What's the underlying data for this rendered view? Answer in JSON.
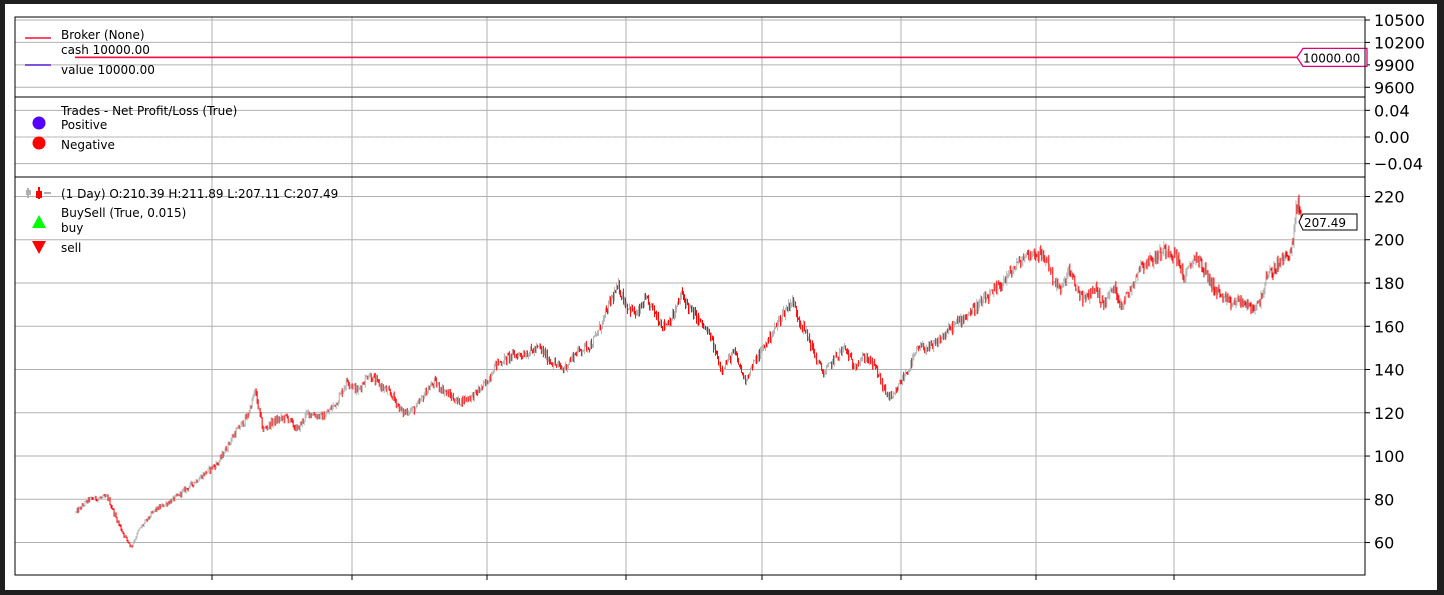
{
  "chart_data": [
    {
      "type": "line",
      "title": "",
      "ylim": [
        9470,
        10540
      ],
      "yticks": [
        10500,
        10200,
        9900,
        9600
      ],
      "grid": true,
      "legend_position": "top-left",
      "legend": [
        {
          "label": "Broker (None)",
          "color": "#ff1030",
          "marker": ""
        },
        {
          "label": "cash 10000.00",
          "color": "#ff1030",
          "marker": "line"
        },
        {
          "label": "value 10000.00",
          "color": "#5b1fd6",
          "marker": "line"
        }
      ],
      "series": [
        {
          "name": "cash 10000.00",
          "color": "#ff1030",
          "value": 10000.0
        },
        {
          "name": "value 10000.00",
          "color": "#5b1fd6",
          "value": 10000.0
        }
      ],
      "last_value_label": "10000.00",
      "last_value_color": "#e0007a"
    },
    {
      "type": "scatter",
      "ylim": [
        -0.06,
        0.06
      ],
      "yticks": [
        0.04,
        0.0,
        -0.04
      ],
      "ytick_labels": [
        "0.04",
        "0.00",
        "−0.04"
      ],
      "zero_line": 0.0,
      "grid": true,
      "legend_position": "top-left",
      "legend": [
        {
          "label": "Trades - Net Profit/Loss (True)",
          "color": "",
          "marker": ""
        },
        {
          "label": "Positive",
          "color": "#5500ff",
          "marker": "circle"
        },
        {
          "label": "Negative",
          "color": "#ff0000",
          "marker": "circle"
        }
      ],
      "points": []
    },
    {
      "type": "candlestick",
      "ylim": [
        45,
        229
      ],
      "yticks": [
        220,
        200,
        180,
        160,
        140,
        120,
        100,
        80,
        60
      ],
      "grid": true,
      "legend_position": "top-left",
      "legend": [
        {
          "label": " (1 Day) O:210.39 H:211.89 L:207.11 C:207.49",
          "marker": "candle"
        },
        {
          "label": "BuySell (True, 0.015)",
          "color": "",
          "marker": ""
        },
        {
          "label": "buy",
          "color": "#00ff00",
          "marker": "triangle-up"
        },
        {
          "label": "sell",
          "color": "#ff0000",
          "marker": "triangle-down"
        }
      ],
      "up_color": "#b0b0b0",
      "down_color": "#ff0000",
      "x_range": [
        0,
        1000
      ],
      "last_value_label": "207.49",
      "anchors": [
        [
          0,
          74
        ],
        [
          10,
          80
        ],
        [
          24,
          81
        ],
        [
          30,
          72
        ],
        [
          36,
          64
        ],
        [
          42,
          58
        ],
        [
          48,
          66
        ],
        [
          60,
          75
        ],
        [
          74,
          80
        ],
        [
          90,
          88
        ],
        [
          108,
          97
        ],
        [
          120,
          110
        ],
        [
          130,
          118
        ],
        [
          136,
          130
        ],
        [
          142,
          112
        ],
        [
          150,
          116
        ],
        [
          160,
          118
        ],
        [
          168,
          112
        ],
        [
          176,
          120
        ],
        [
          188,
          118
        ],
        [
          198,
          125
        ],
        [
          206,
          135
        ],
        [
          214,
          130
        ],
        [
          222,
          138
        ],
        [
          232,
          132
        ],
        [
          240,
          128
        ],
        [
          248,
          120
        ],
        [
          258,
          122
        ],
        [
          266,
          130
        ],
        [
          272,
          134
        ],
        [
          280,
          130
        ],
        [
          290,
          125
        ],
        [
          302,
          128
        ],
        [
          312,
          134
        ],
        [
          318,
          142
        ],
        [
          330,
          146
        ],
        [
          344,
          148
        ],
        [
          352,
          150
        ],
        [
          360,
          144
        ],
        [
          370,
          140
        ],
        [
          380,
          148
        ],
        [
          392,
          152
        ],
        [
          400,
          162
        ],
        [
          406,
          172
        ],
        [
          412,
          178
        ],
        [
          418,
          170
        ],
        [
          426,
          165
        ],
        [
          432,
          172
        ],
        [
          438,
          168
        ],
        [
          446,
          160
        ],
        [
          454,
          165
        ],
        [
          460,
          175
        ],
        [
          466,
          168
        ],
        [
          474,
          162
        ],
        [
          482,
          155
        ],
        [
          490,
          140
        ],
        [
          500,
          148
        ],
        [
          508,
          135
        ],
        [
          514,
          142
        ],
        [
          522,
          150
        ],
        [
          530,
          158
        ],
        [
          536,
          165
        ],
        [
          544,
          172
        ],
        [
          550,
          162
        ],
        [
          556,
          155
        ],
        [
          562,
          145
        ],
        [
          568,
          138
        ],
        [
          576,
          145
        ],
        [
          584,
          150
        ],
        [
          590,
          142
        ],
        [
          600,
          146
        ],
        [
          608,
          140
        ],
        [
          614,
          130
        ],
        [
          620,
          126
        ],
        [
          626,
          134
        ],
        [
          632,
          140
        ],
        [
          640,
          150
        ],
        [
          650,
          150
        ],
        [
          658,
          155
        ],
        [
          666,
          160
        ],
        [
          676,
          165
        ],
        [
          686,
          170
        ],
        [
          696,
          175
        ],
        [
          706,
          182
        ],
        [
          714,
          188
        ],
        [
          722,
          193
        ],
        [
          730,
          194
        ],
        [
          738,
          190
        ],
        [
          742,
          182
        ],
        [
          748,
          176
        ],
        [
          754,
          186
        ],
        [
          760,
          177
        ],
        [
          766,
          172
        ],
        [
          774,
          178
        ],
        [
          780,
          170
        ],
        [
          788,
          178
        ],
        [
          794,
          170
        ],
        [
          800,
          176
        ],
        [
          808,
          188
        ],
        [
          818,
          191
        ],
        [
          828,
          196
        ],
        [
          836,
          192
        ],
        [
          842,
          182
        ],
        [
          850,
          193
        ],
        [
          856,
          187
        ],
        [
          862,
          180
        ],
        [
          868,
          175
        ],
        [
          876,
          170
        ],
        [
          884,
          172
        ],
        [
          892,
          168
        ],
        [
          898,
          170
        ],
        [
          904,
          182
        ],
        [
          912,
          188
        ],
        [
          920,
          193
        ],
        [
          924,
          197
        ],
        [
          926,
          212
        ],
        [
          928,
          217
        ],
        [
          931,
          209
        ]
      ]
    }
  ]
}
